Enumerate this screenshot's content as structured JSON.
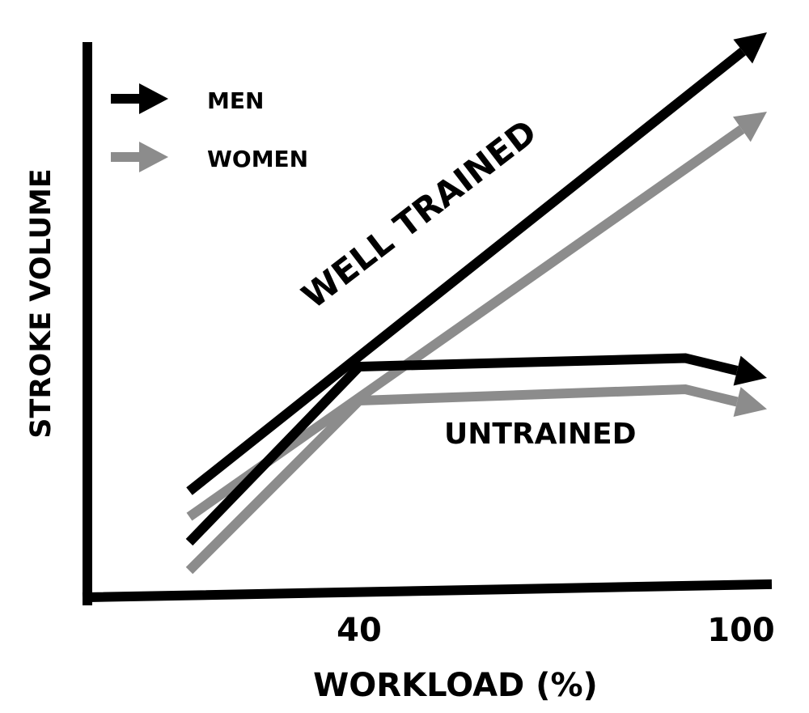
{
  "chart_data": {
    "type": "line",
    "title": "",
    "xlabel": "WORKLOAD (%)",
    "ylabel": "STROKE VOLUME",
    "x_ticks": [
      {
        "value": 40,
        "label": "40"
      },
      {
        "value": 100,
        "label": "100"
      }
    ],
    "xlim": [
      0,
      100
    ],
    "ylim": [
      0,
      100
    ],
    "grid": false,
    "legend": {
      "placement": "top-left",
      "entries": [
        {
          "label": "MEN",
          "color": "#000000"
        },
        {
          "label": "WOMEN",
          "color": "#8c8c8c"
        }
      ]
    },
    "annotations": {
      "well_trained": "WELL TRAINED",
      "untrained": "UNTRAINED"
    },
    "series": [
      {
        "sex": "men",
        "group": "well_trained",
        "color": "#000000",
        "x": [
          15,
          100
        ],
        "y": [
          19,
          100
        ]
      },
      {
        "sex": "women",
        "group": "well_trained",
        "color": "#8c8c8c",
        "x": [
          15,
          100
        ],
        "y": [
          14.5,
          86
        ]
      },
      {
        "sex": "men",
        "group": "untrained",
        "color": "#000000",
        "x": [
          15,
          40,
          88,
          100
        ],
        "y": [
          10,
          41,
          42.5,
          39
        ]
      },
      {
        "sex": "women",
        "group": "untrained",
        "color": "#8c8c8c",
        "x": [
          15,
          40,
          88,
          100
        ],
        "y": [
          5,
          35,
          37,
          33.5
        ]
      }
    ]
  }
}
